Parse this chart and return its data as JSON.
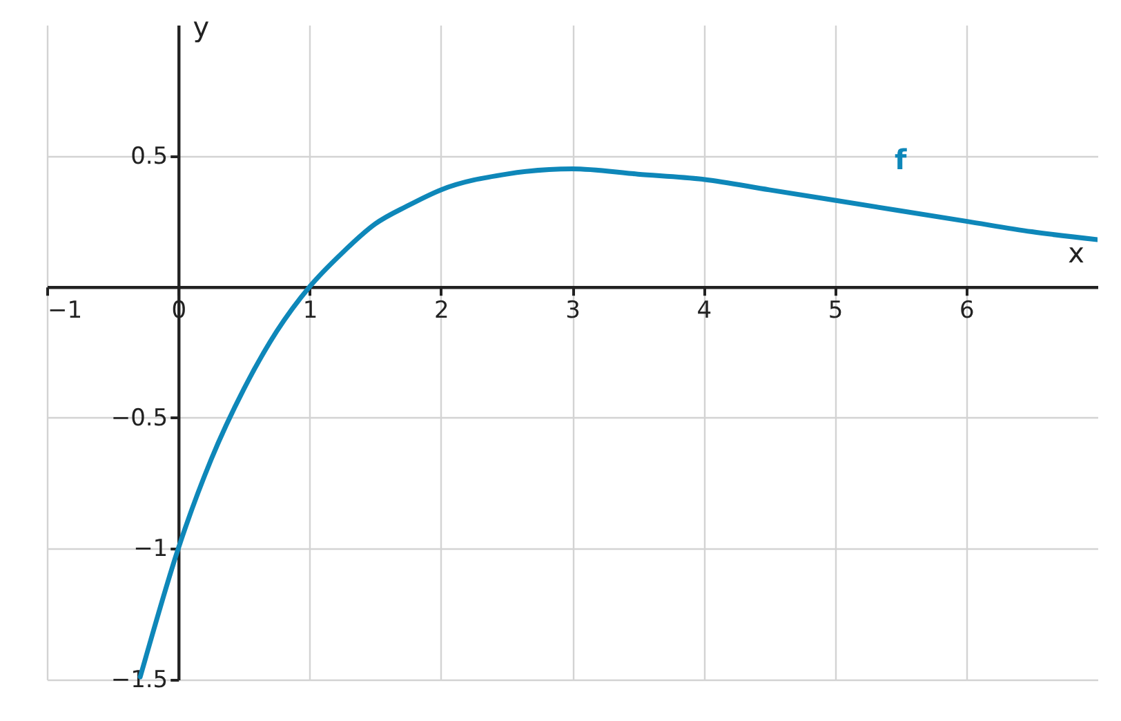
{
  "chart_data": {
    "type": "line",
    "xlabel": "x",
    "ylabel": "y",
    "x": [
      -0.29,
      -0.25,
      0,
      0.25,
      0.5,
      0.75,
      1,
      1.25,
      1.5,
      1.75,
      2,
      2.5,
      3,
      3.5,
      4,
      4.5,
      5,
      5.5,
      6,
      6.5,
      7
    ],
    "series": [
      {
        "name": "f",
        "color": "#0e87b9",
        "values": [
          -1.49,
          -1.42,
          -1,
          -0.66,
          -0.39,
          -0.17,
          0,
          0.13,
          0.24,
          0.31,
          0.37,
          0.43,
          0.45,
          0.43,
          0.41,
          0.37,
          0.33,
          0.29,
          0.25,
          0.21,
          0.18
        ]
      }
    ],
    "xlim": [
      -1,
      7
    ],
    "ylim": [
      -1.5,
      1
    ],
    "xticks": [
      {
        "value": -1,
        "label": "−1"
      },
      0,
      1,
      2,
      3,
      4,
      5,
      6
    ],
    "yticks": [
      0.5,
      {
        "value": -0.5,
        "label": "−0.5"
      },
      {
        "value": -1,
        "label": "−1"
      },
      {
        "value": -1.5,
        "label": "−1.5"
      }
    ],
    "grid": true
  }
}
